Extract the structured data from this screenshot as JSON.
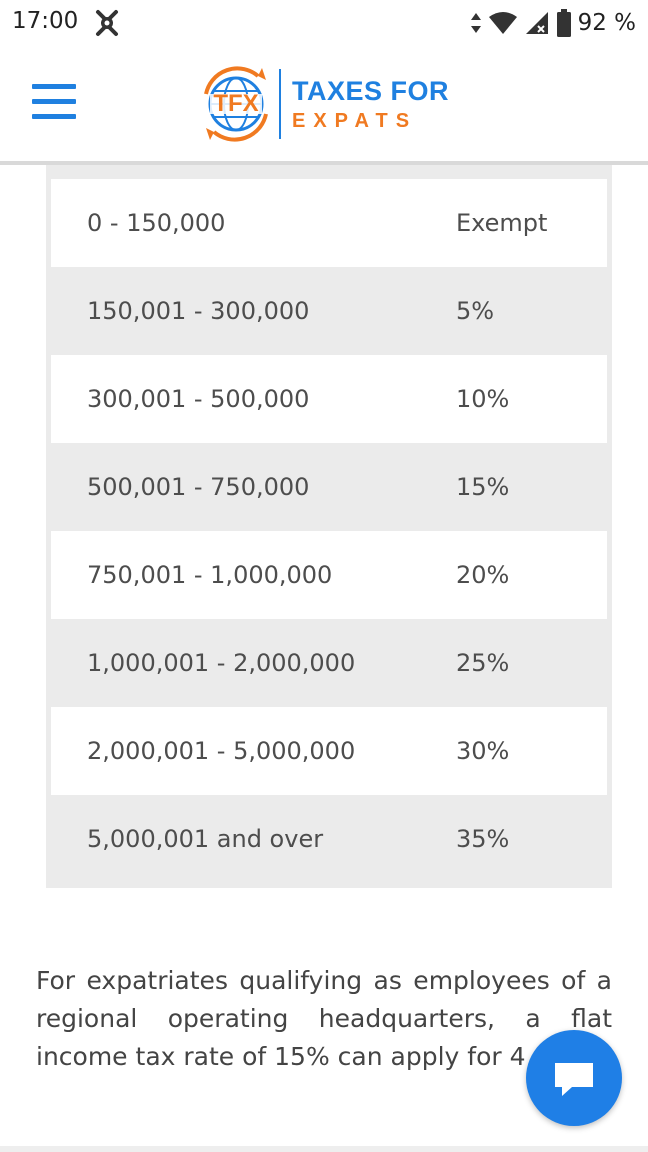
{
  "status_bar": {
    "time": "17:00",
    "battery_percent": "92 %",
    "icons": [
      "notification-app-icon",
      "data-arrows-icon",
      "wifi-icon",
      "signal-icon",
      "battery-icon"
    ]
  },
  "header": {
    "menu_icon": "hamburger-menu-icon",
    "logo": {
      "emblem_text": "TFX",
      "line1": "TAXES FOR",
      "line2": "EXPATS",
      "colors": {
        "blue": "#1f80e0",
        "orange": "#f07a21"
      }
    }
  },
  "tax_table": {
    "rows": [
      {
        "income": "0 - 150,000",
        "rate": "Exempt"
      },
      {
        "income": "150,001 - 300,000",
        "rate": "5%"
      },
      {
        "income": "300,001 - 500,000",
        "rate": "10%"
      },
      {
        "income": "500,001 - 750,000",
        "rate": "15%"
      },
      {
        "income": "750,001 - 1,000,000",
        "rate": "20%"
      },
      {
        "income": "1,000,001 - 2,000,000",
        "rate": "25%"
      },
      {
        "income": "2,000,001 - 5,000,000",
        "rate": "30%"
      },
      {
        "income": "5,000,001 and over",
        "rate": "35%"
      }
    ]
  },
  "content": {
    "paragraph": "For expatriates qualifying as employees of a regional operating headquarters, a flat income tax rate of 15% can apply for 4 years."
  },
  "chat_widget": {
    "icon": "chat-bubble-icon",
    "color": "#1f7fe6"
  }
}
